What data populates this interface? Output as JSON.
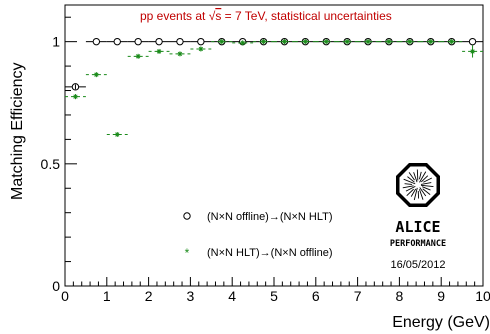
{
  "chart_data": {
    "type": "scatter",
    "xlabel": "Energy (GeV)",
    "ylabel": "Matching Efficiency",
    "annotation": {
      "prefix": "pp events at ",
      "sqrt_symbol": "√",
      "s_var": "s",
      "suffix": " = 7 TeV, statistical uncertainties"
    },
    "xlim": [
      0,
      10
    ],
    "ylim": [
      0,
      1.15
    ],
    "x_ticks": [
      0,
      1,
      2,
      3,
      4,
      5,
      6,
      7,
      8,
      9,
      10
    ],
    "y_ticks": [
      0,
      0.5,
      1
    ],
    "y_tick_labels": [
      "0",
      "0.5",
      "1"
    ],
    "grid": false,
    "legend_position": "bottom-center",
    "series": [
      {
        "name": "(N×N offline)→(N×N HLT)",
        "marker": "open-circle",
        "color": "#000000",
        "x": [
          0.25,
          0.75,
          1.25,
          1.75,
          2.25,
          2.75,
          3.25,
          3.75,
          4.25,
          4.75,
          5.25,
          5.75,
          6.25,
          6.75,
          7.25,
          7.75,
          8.25,
          8.75,
          9.25,
          9.75
        ],
        "y": [
          0.815,
          1.0,
          1.0,
          1.0,
          1.0,
          1.0,
          1.0,
          1.0,
          1.0,
          1.0,
          1.0,
          1.0,
          1.0,
          1.0,
          1.0,
          1.0,
          1.0,
          1.0,
          1.0,
          1.0
        ],
        "yerr": [
          0.01,
          0,
          0,
          0,
          0,
          0,
          0,
          0,
          0,
          0,
          0,
          0,
          0,
          0,
          0,
          0,
          0,
          0,
          0,
          0
        ]
      },
      {
        "name": "(N×N HLT)→(N×N offline)",
        "marker": "star",
        "color": "#1a8a1a",
        "x": [
          0.25,
          0.75,
          1.25,
          1.75,
          2.25,
          2.75,
          3.25,
          3.75,
          4.25,
          4.75,
          5.25,
          5.75,
          6.25,
          6.75,
          7.25,
          7.75,
          8.25,
          8.75,
          9.25,
          9.75
        ],
        "y": [
          0.775,
          0.865,
          0.62,
          0.94,
          0.96,
          0.95,
          0.97,
          1.0,
          0.995,
          1.0,
          1.0,
          1.0,
          1.0,
          1.0,
          1.0,
          1.0,
          1.0,
          1.0,
          1.0,
          0.96
        ],
        "yerr": [
          0.01,
          0.008,
          0.005,
          0.006,
          0.006,
          0.008,
          0.008,
          0.005,
          0.005,
          0,
          0,
          0,
          0,
          0,
          0,
          0,
          0,
          0,
          0,
          0.025
        ]
      }
    ]
  },
  "logo": {
    "name": "ALICE",
    "subtitle": "PERFORMANCE",
    "date": "16/05/2012"
  }
}
